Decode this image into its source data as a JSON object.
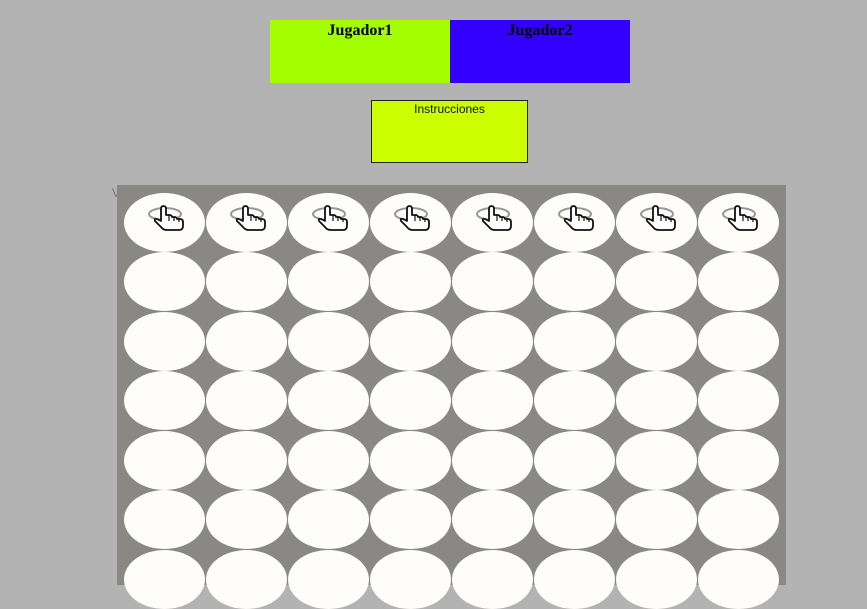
{
  "players": {
    "player1": {
      "name": "Jugador1",
      "color": "#a3ff00"
    },
    "player2": {
      "name": "Jugador2",
      "color": "#3300ff"
    }
  },
  "instructions": {
    "label": "Instrucciones",
    "color": "#ccff00"
  },
  "stray_text": "V",
  "board": {
    "columns": 8,
    "visible_rows": 7,
    "board_color": "#8a8884",
    "cell_color": "#fefdfa",
    "drop_icon": "pointing-hand-icon"
  }
}
